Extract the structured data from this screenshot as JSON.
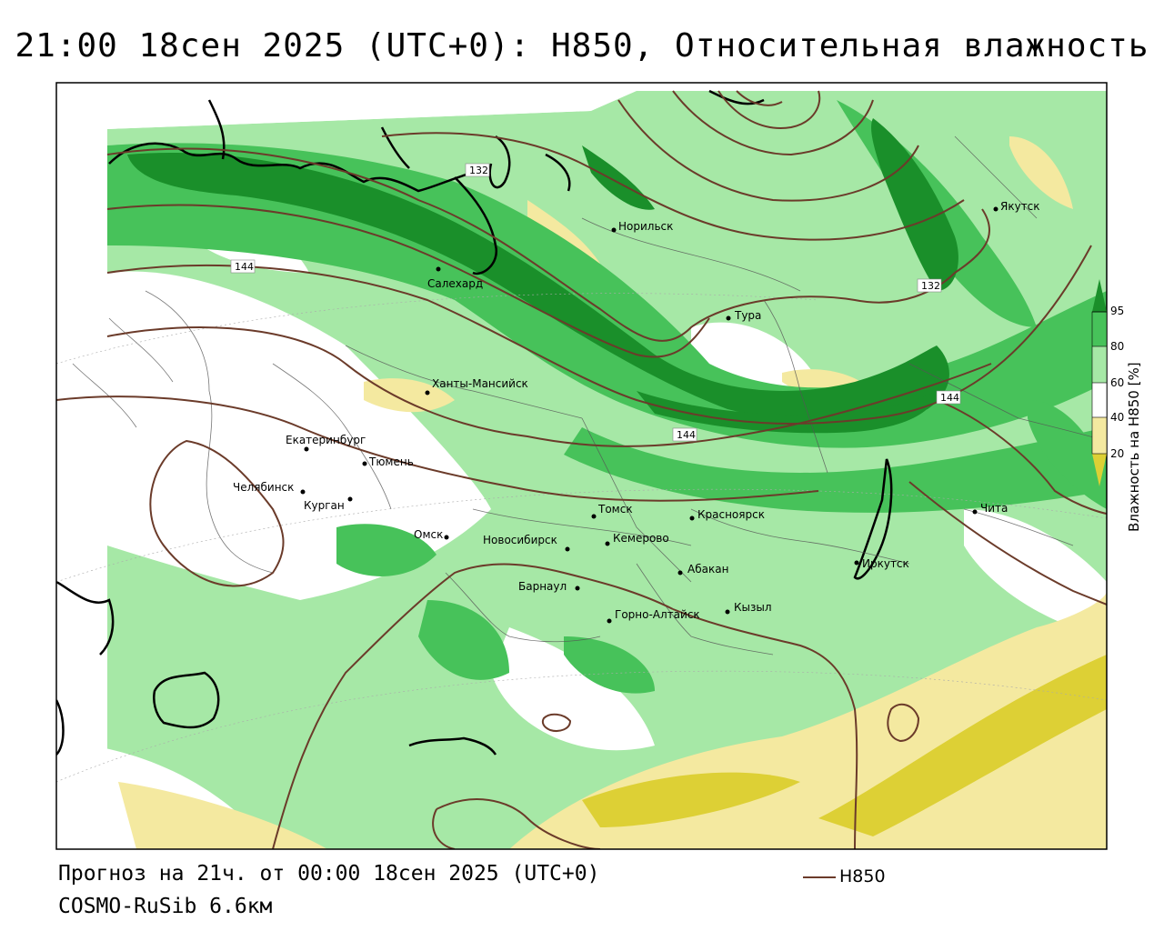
{
  "title": "21:00 18сен 2025 (UTC+0): H850, Относительная влажность",
  "forecast_line": "Прогноз на 21ч. от 00:00 18сен 2025 (UTC+0)",
  "model_line": "COSMO-RuSib 6.6км",
  "legend": {
    "line_label": "H850",
    "line_color": "#6b3b2a"
  },
  "colorbar": {
    "title": "Влажность на H850 [%]",
    "ticks": [
      "95",
      "80",
      "60",
      "40",
      "20"
    ],
    "colors": {
      "c95": "#1a8f2a",
      "c80": "#47c25a",
      "c60": "#a6e8a6",
      "c40": "#ffffff",
      "c20": "#f4e9a0",
      "c0": "#ddd035"
    }
  },
  "contour_labels": [
    "132",
    "144",
    "132",
    "144",
    "144"
  ],
  "cities": [
    {
      "name": "Якутск"
    },
    {
      "name": "Норильск"
    },
    {
      "name": "Салехард"
    },
    {
      "name": "Тура"
    },
    {
      "name": "Ханты-Мансийск"
    },
    {
      "name": "Екатеринбург"
    },
    {
      "name": "Тюмень"
    },
    {
      "name": "Челябинск"
    },
    {
      "name": "Курган"
    },
    {
      "name": "Омск"
    },
    {
      "name": "Томск"
    },
    {
      "name": "Красноярск"
    },
    {
      "name": "Новосибирск"
    },
    {
      "name": "Кемерово"
    },
    {
      "name": "Абакан"
    },
    {
      "name": "Барнаул"
    },
    {
      "name": "Горно-Алтайск"
    },
    {
      "name": "Кызыл"
    },
    {
      "name": "Иркутск"
    },
    {
      "name": "Чита"
    }
  ]
}
